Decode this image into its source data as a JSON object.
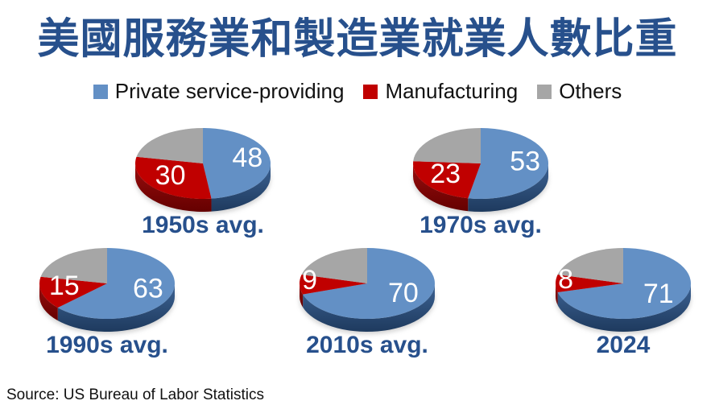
{
  "title": "美國服務業和製造業就業人數比重",
  "source": "Source: US Bureau of Labor Statistics",
  "legend": {
    "position": "top",
    "items": [
      {
        "label": "Private service-providing",
        "color": "#6390C5"
      },
      {
        "label": "Manufacturing",
        "color": "#C00000"
      },
      {
        "label": "Others",
        "color": "#A6A6A6"
      }
    ]
  },
  "colors": {
    "service": "#6390C5",
    "manufacturing": "#C00000",
    "others": "#A6A6A6",
    "service_side_top": "#3D6394",
    "service_side_bottom": "#1E3A5E",
    "manufacturing_side_top": "#9A0E0E",
    "manufacturing_side_bottom": "#650000",
    "title_text": "#27508C",
    "value_label_text": "#FFFFFF"
  },
  "chart_data": {
    "type": "pie",
    "style": "3d-pie-multiples",
    "unit": "percent share of US employment",
    "series_names": [
      "Private service-providing",
      "Manufacturing",
      "Others"
    ],
    "legend_position": "top",
    "value_labels_shown_for": [
      "Private service-providing",
      "Manufacturing"
    ],
    "pies": [
      {
        "label": "1950s avg.",
        "values": [
          48,
          30,
          22
        ]
      },
      {
        "label": "1970s avg.",
        "values": [
          53,
          23,
          24
        ]
      },
      {
        "label": "1990s avg.",
        "values": [
          63,
          15,
          22
        ]
      },
      {
        "label": "2010s avg.",
        "values": [
          70,
          9,
          21
        ]
      },
      {
        "label": "2024",
        "values": [
          71,
          8,
          21
        ]
      }
    ]
  }
}
